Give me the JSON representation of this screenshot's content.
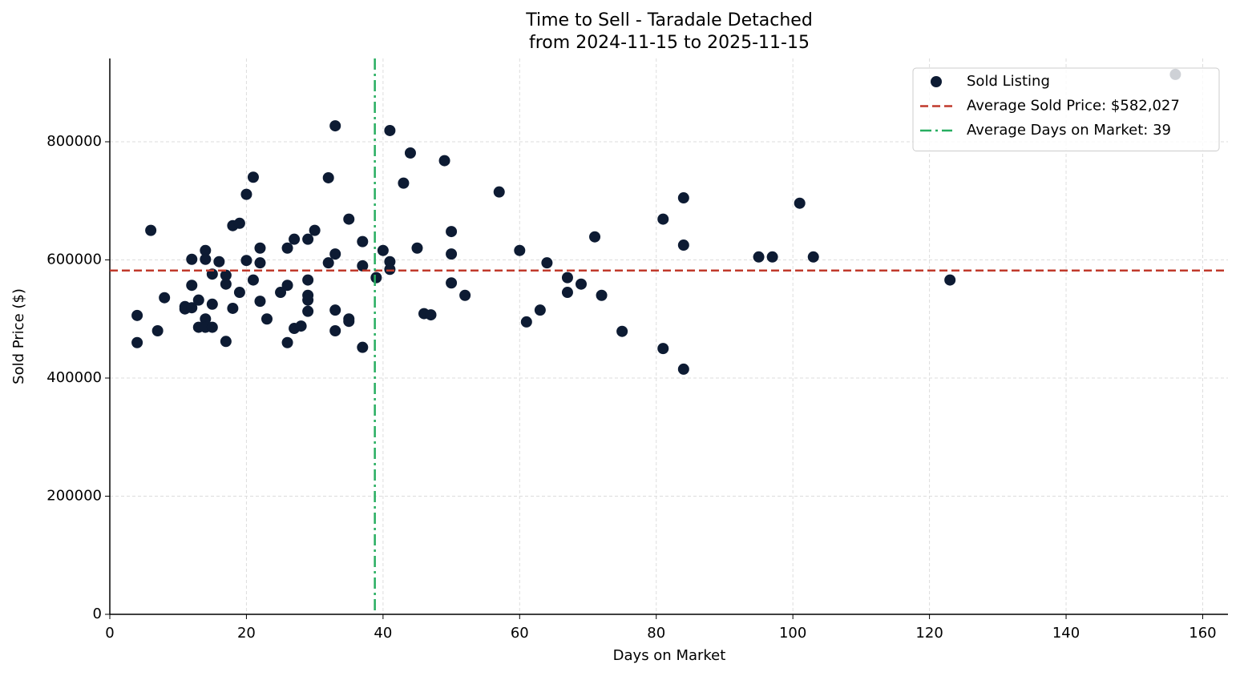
{
  "chart_data": {
    "type": "scatter",
    "title": "Time to Sell - Taradale Detached",
    "subtitle": "from 2024-11-15 to 2025-11-15",
    "xlabel": "Days on Market",
    "ylabel": "Sold Price ($)",
    "xlim": [
      0,
      163.7
    ],
    "ylim": [
      0,
      941000
    ],
    "xticks": [
      0,
      20,
      40,
      60,
      80,
      100,
      120,
      140,
      160
    ],
    "yticks": [
      0,
      200000,
      400000,
      600000,
      800000
    ],
    "grid": true,
    "legend": "upper right",
    "series": [
      {
        "name": "Sold Listing",
        "color": "#0d1b33",
        "x": [
          4,
          4,
          6,
          7,
          8,
          11,
          11,
          12,
          12,
          12,
          13,
          13,
          14,
          14,
          14,
          14,
          15,
          15,
          15,
          16,
          17,
          17,
          17,
          18,
          18,
          19,
          19,
          20,
          20,
          21,
          21,
          22,
          22,
          22,
          23,
          25,
          26,
          26,
          26,
          27,
          27,
          28,
          29,
          29,
          29,
          29,
          29,
          30,
          32,
          32,
          33,
          33,
          33,
          33,
          35,
          35,
          35,
          37,
          37,
          37,
          39,
          40,
          41,
          41,
          41,
          43,
          44,
          45,
          46,
          47,
          49,
          50,
          50,
          50,
          52,
          57,
          60,
          61,
          63,
          64,
          67,
          67,
          69,
          71,
          72,
          75,
          81,
          81,
          84,
          84,
          84,
          95,
          97,
          101,
          103,
          123,
          156
        ],
        "values": [
          506000,
          460000,
          650000,
          480000,
          536000,
          521000,
          517000,
          601000,
          557000,
          519000,
          532000,
          486000,
          616000,
          601000,
          500000,
          486000,
          576000,
          525000,
          486000,
          597000,
          574000,
          559000,
          462000,
          658000,
          518000,
          662000,
          545000,
          711000,
          599000,
          740000,
          566000,
          620000,
          595000,
          530000,
          500000,
          545000,
          620000,
          557000,
          460000,
          635000,
          484000,
          488000,
          635000,
          566000,
          540000,
          532000,
          513000,
          650000,
          739000,
          595000,
          827000,
          610000,
          515000,
          480000,
          669000,
          500000,
          496000,
          631000,
          590000,
          452000,
          570000,
          616000,
          819000,
          597000,
          584000,
          730000,
          781000,
          620000,
          509000,
          507000,
          768000,
          648000,
          610000,
          561000,
          540000,
          715000,
          616000,
          495000,
          515000,
          595000,
          570000,
          545000,
          559000,
          639000,
          540000,
          479000,
          669000,
          450000,
          705000,
          625000,
          415000,
          605000,
          605000,
          696000,
          605000,
          566000,
          914000
        ]
      }
    ],
    "reference_lines": [
      {
        "name": "Average Sold Price: $582,027",
        "axis": "y",
        "value": 582027,
        "color": "#c0392b",
        "style": "dashed"
      },
      {
        "name": "Average Days on Market: 39",
        "axis": "x",
        "value": 38.8,
        "color": "#27ae60",
        "style": "dashdot"
      }
    ]
  }
}
